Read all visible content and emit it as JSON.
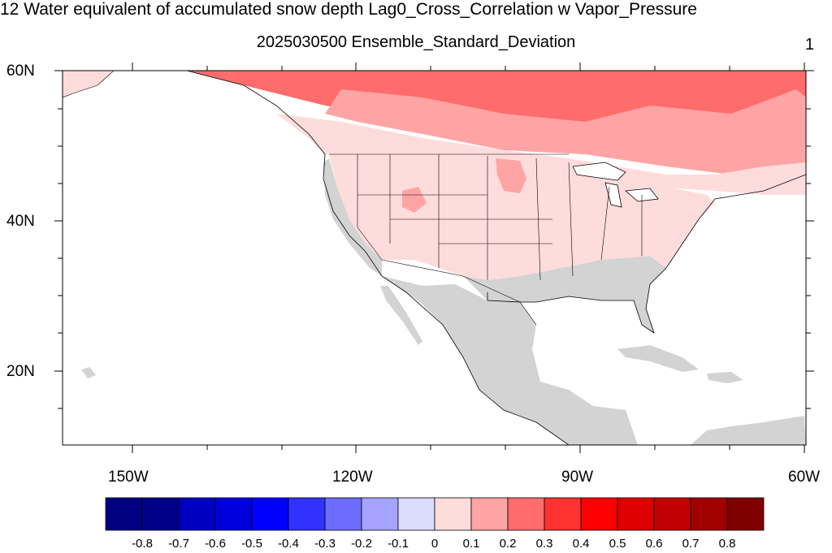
{
  "figure": {
    "title": "12 Water equivalent of accumulated snow depth Lag0_Cross_Correlation w Vapor_Pressure",
    "subtitle": "2025030500 Ensemble_Standard_Deviation",
    "panel_number": "1"
  },
  "map": {
    "lat_labels": [
      "60N",
      "40N",
      "20N"
    ],
    "lon_labels": [
      "150W",
      "120W",
      "90W",
      "60W"
    ],
    "lat_range": [
      10,
      60
    ],
    "lon_range": [
      -160,
      -60
    ],
    "no_data_color": "#d3d3d3",
    "boundary_color": "#000000"
  },
  "colorbar": {
    "colors": [
      "#000080",
      "#00008b",
      "#0000c0",
      "#0000dc",
      "#0000ff",
      "#3232ff",
      "#6c6cff",
      "#a4a4ff",
      "#dcdcff",
      "#ffdcdc",
      "#ffa4a4",
      "#ff6c6c",
      "#ff3232",
      "#ff0000",
      "#dc0000",
      "#c00000",
      "#a00000",
      "#800000"
    ],
    "labels": [
      "-0.8",
      "-0.7",
      "-0.6",
      "-0.5",
      "-0.4",
      "-0.3",
      "-0.2",
      "-0.1",
      "0",
      "0.1",
      "0.2",
      "0.3",
      "0.4",
      "0.5",
      "0.6",
      "0.7",
      "0.8"
    ]
  }
}
